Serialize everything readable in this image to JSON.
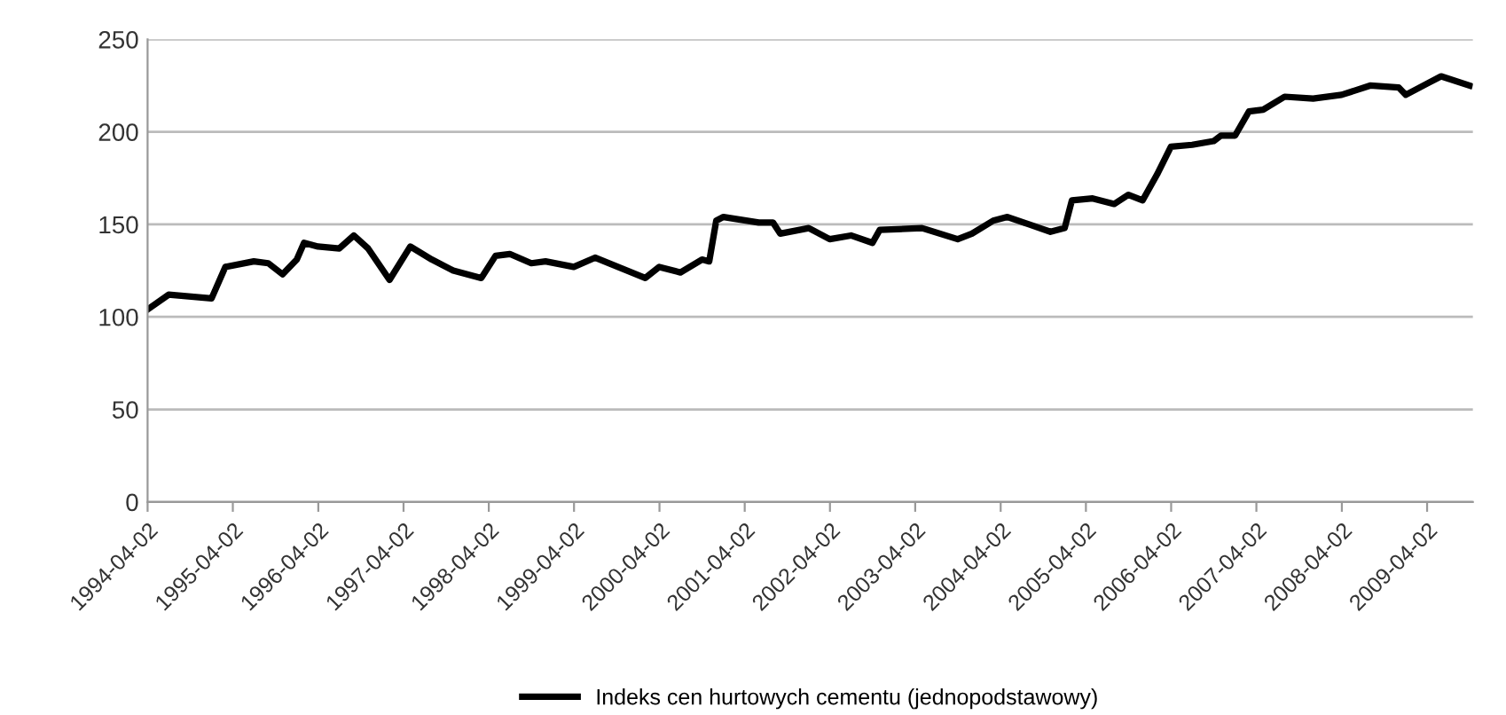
{
  "chart_data": {
    "type": "line",
    "x": [
      "1994-04-02",
      "1994-07",
      "1995-01",
      "1995-03",
      "1995-07",
      "1995-09",
      "1995-11",
      "1996-01",
      "1996-02",
      "1996-04",
      "1996-07",
      "1996-09",
      "1996-11",
      "1997-02",
      "1997-05",
      "1997-08",
      "1997-11",
      "1998-03",
      "1998-05",
      "1998-07",
      "1998-10",
      "1998-12",
      "1999-04",
      "1999-07",
      "2000-02",
      "2000-04",
      "2000-07",
      "2000-10",
      "2000-11",
      "2000-12",
      "2001-01",
      "2001-06",
      "2001-08",
      "2001-09",
      "2002-01",
      "2002-04",
      "2002-07",
      "2002-10",
      "2002-11",
      "2003-05",
      "2003-10",
      "2003-12",
      "2004-03",
      "2004-05",
      "2004-08",
      "2004-11",
      "2005-01",
      "2005-02",
      "2005-05",
      "2005-08",
      "2005-10",
      "2005-12",
      "2006-02",
      "2006-04",
      "2006-07",
      "2006-10",
      "2006-11",
      "2007-01",
      "2007-03",
      "2007-05",
      "2007-08",
      "2007-12",
      "2008-04",
      "2008-08",
      "2008-12",
      "2009-01",
      "2009-04",
      "2009-06",
      "2009-10"
    ],
    "series": [
      {
        "name": "Indeks cen hurtowych cementu (jednopodstawowy)",
        "color": "#000000",
        "values": [
          104,
          112,
          110,
          127,
          130,
          129,
          123,
          131,
          140,
          138,
          137,
          144,
          137,
          120,
          138,
          131,
          125,
          121,
          133,
          134,
          129,
          130,
          127,
          132,
          121,
          127,
          124,
          131,
          130,
          152,
          154,
          151,
          151,
          145,
          148,
          142,
          144,
          140,
          147,
          148,
          142,
          145,
          152,
          154,
          150,
          146,
          148,
          163,
          164,
          161,
          166,
          163,
          177,
          192,
          193,
          195,
          198,
          198,
          211,
          212,
          219,
          218,
          220,
          225,
          224,
          220,
          226,
          230,
          225
        ]
      }
    ],
    "xlim": [
      "1994-04-02",
      "2009-10-15"
    ],
    "xticks": [
      {
        "value": "1994-04-02",
        "label": "1994-04-02"
      },
      {
        "value": "1995-04-02",
        "label": "1995-04-02"
      },
      {
        "value": "1996-04-02",
        "label": "1996-04-02"
      },
      {
        "value": "1997-04-02",
        "label": "1997-04-02"
      },
      {
        "value": "1998-04-02",
        "label": "1998-04-02"
      },
      {
        "value": "1999-04-02",
        "label": "1999-04-02"
      },
      {
        "value": "2000-04-02",
        "label": "2000-04-02"
      },
      {
        "value": "2001-04-02",
        "label": "2001-04-02"
      },
      {
        "value": "2002-04-02",
        "label": "2002-04-02"
      },
      {
        "value": "2003-04-02",
        "label": "2003-04-02"
      },
      {
        "value": "2004-04-02",
        "label": "2004-04-02"
      },
      {
        "value": "2005-04-02",
        "label": "2005-04-02"
      },
      {
        "value": "2006-04-02",
        "label": "2006-04-02"
      },
      {
        "value": "2007-04-02",
        "label": "2007-04-02"
      },
      {
        "value": "2008-04-02",
        "label": "2008-04-02"
      },
      {
        "value": "2009-04-02",
        "label": "2009-04-02"
      }
    ],
    "ylim": [
      0,
      250
    ],
    "yticks": [
      0,
      50,
      100,
      150,
      200,
      250
    ],
    "grid": "y",
    "legend": "bottom",
    "line_style": "solid"
  }
}
